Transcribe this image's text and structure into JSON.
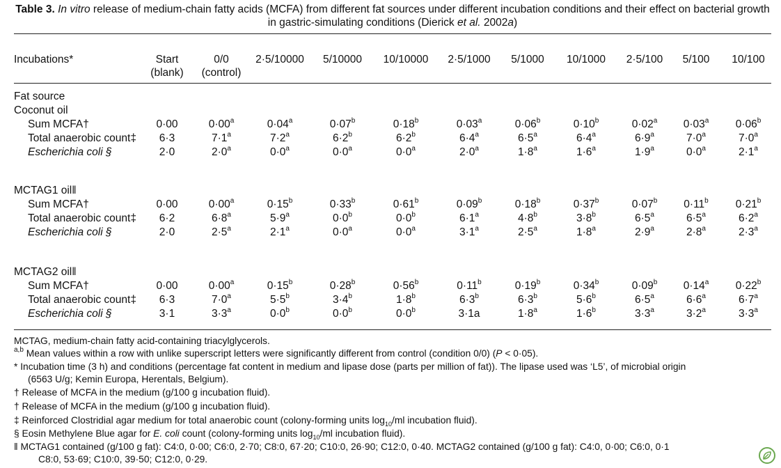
{
  "caption": {
    "label": "Table 3.",
    "italic_lead": "In vitro",
    "text_1": " release of medium-chain fatty acids (MCFA) from different fat sources under different incubation conditions and their effect on bacterial growth in gastric-simulating  conditions (Dierick ",
    "italic_etal": "et al.",
    "text_2": " 2002",
    "italic_suffix": "a",
    "text_3": ")"
  },
  "header": {
    "first_col": "Incubations*",
    "columns": [
      {
        "line1": "Start",
        "line2": "(blank)"
      },
      {
        "line1": "0/0",
        "line2": "(control)"
      },
      {
        "line1": "2·5/10000",
        "line2": ""
      },
      {
        "line1": "5/10000",
        "line2": ""
      },
      {
        "line1": "10/10000",
        "line2": ""
      },
      {
        "line1": "2·5/1000",
        "line2": ""
      },
      {
        "line1": "5/1000",
        "line2": ""
      },
      {
        "line1": "10/1000",
        "line2": ""
      },
      {
        "line1": "2·5/100",
        "line2": ""
      },
      {
        "line1": "5/100",
        "line2": ""
      },
      {
        "line1": "10/100",
        "line2": ""
      }
    ]
  },
  "body": {
    "fat_source_label": "Fat source",
    "groups": [
      {
        "name": "Coconut oil",
        "rows": [
          {
            "label": "Sum MCFA†",
            "italic": false,
            "cells": [
              {
                "v": "0·00",
                "s": ""
              },
              {
                "v": "0·00",
                "s": "a"
              },
              {
                "v": "0·04",
                "s": "a"
              },
              {
                "v": "0·07",
                "s": "b"
              },
              {
                "v": "0·18",
                "s": "b"
              },
              {
                "v": "0·03",
                "s": "a"
              },
              {
                "v": "0·06",
                "s": "b"
              },
              {
                "v": "0·10",
                "s": "b"
              },
              {
                "v": "0·02",
                "s": "a"
              },
              {
                "v": "0·03",
                "s": "a"
              },
              {
                "v": "0·06",
                "s": "b"
              }
            ]
          },
          {
            "label": "Total anaerobic count‡",
            "italic": false,
            "cells": [
              {
                "v": "6·3",
                "s": ""
              },
              {
                "v": "7·1",
                "s": "a"
              },
              {
                "v": "7·2",
                "s": "a"
              },
              {
                "v": "6·2",
                "s": "b"
              },
              {
                "v": "6·2",
                "s": "b"
              },
              {
                "v": "6·4",
                "s": "a"
              },
              {
                "v": "6·5",
                "s": "a"
              },
              {
                "v": "6·4",
                "s": "a"
              },
              {
                "v": "6·9",
                "s": "a"
              },
              {
                "v": "7·0",
                "s": "a"
              },
              {
                "v": "7·0",
                "s": "a"
              }
            ]
          },
          {
            "label": "Escherichia coli §",
            "italic": true,
            "cells": [
              {
                "v": "2·0",
                "s": ""
              },
              {
                "v": "2·0",
                "s": "a"
              },
              {
                "v": "0·0",
                "s": "a"
              },
              {
                "v": "0·0",
                "s": "a"
              },
              {
                "v": "0·0",
                "s": "a"
              },
              {
                "v": "2·0",
                "s": "a"
              },
              {
                "v": "1·8",
                "s": "a"
              },
              {
                "v": "1·6",
                "s": "a"
              },
              {
                "v": "1·9",
                "s": "a"
              },
              {
                "v": "0·0",
                "s": "a"
              },
              {
                "v": "2·1",
                "s": "a"
              }
            ]
          }
        ]
      },
      {
        "name": "MCTAG1 oil‖",
        "rows": [
          {
            "label": "Sum MCFA†",
            "italic": false,
            "cells": [
              {
                "v": "0·00",
                "s": ""
              },
              {
                "v": "0·00",
                "s": "a"
              },
              {
                "v": "0·15",
                "s": "b"
              },
              {
                "v": "0·33",
                "s": "b"
              },
              {
                "v": "0·61",
                "s": "b"
              },
              {
                "v": "0·09",
                "s": "b"
              },
              {
                "v": "0·18",
                "s": "b"
              },
              {
                "v": "0·37",
                "s": "b"
              },
              {
                "v": "0·07",
                "s": "b"
              },
              {
                "v": "0·11",
                "s": "b"
              },
              {
                "v": "0·21",
                "s": "b"
              }
            ]
          },
          {
            "label": "Total anaerobic count‡",
            "italic": false,
            "cells": [
              {
                "v": "6·2",
                "s": ""
              },
              {
                "v": "6·8",
                "s": "a"
              },
              {
                "v": "5·9",
                "s": "a"
              },
              {
                "v": "0·0",
                "s": "b"
              },
              {
                "v": "0·0",
                "s": "b"
              },
              {
                "v": "6·1",
                "s": "a"
              },
              {
                "v": "4·8",
                "s": "b"
              },
              {
                "v": "3·8",
                "s": "b"
              },
              {
                "v": "6·5",
                "s": "a"
              },
              {
                "v": "6·5",
                "s": "a"
              },
              {
                "v": "6·2",
                "s": "a"
              }
            ]
          },
          {
            "label": "Escherichia coli §",
            "italic": true,
            "cells": [
              {
                "v": "2·0",
                "s": ""
              },
              {
                "v": "2·5",
                "s": "a"
              },
              {
                "v": "2·1",
                "s": "a"
              },
              {
                "v": "0·0",
                "s": "a"
              },
              {
                "v": "0·0",
                "s": "a"
              },
              {
                "v": "3·1",
                "s": "a"
              },
              {
                "v": "2·5",
                "s": "a"
              },
              {
                "v": "1·8",
                "s": "a"
              },
              {
                "v": "2·9",
                "s": "a"
              },
              {
                "v": "2·8",
                "s": "a"
              },
              {
                "v": "2·3",
                "s": "a"
              }
            ]
          }
        ]
      },
      {
        "name": "MCTAG2 oil‖",
        "rows": [
          {
            "label": "Sum MCFA†",
            "italic": false,
            "cells": [
              {
                "v": "0·00",
                "s": ""
              },
              {
                "v": "0·00",
                "s": "a"
              },
              {
                "v": "0·15",
                "s": "b"
              },
              {
                "v": "0·28",
                "s": "b"
              },
              {
                "v": "0·56",
                "s": "b"
              },
              {
                "v": "0·11",
                "s": "b"
              },
              {
                "v": "0·19",
                "s": "b"
              },
              {
                "v": "0·34",
                "s": "b"
              },
              {
                "v": "0·09",
                "s": "b"
              },
              {
                "v": "0·14",
                "s": "a"
              },
              {
                "v": "0·22",
                "s": "b"
              }
            ]
          },
          {
            "label": "Total anaerobic count‡",
            "italic": false,
            "cells": [
              {
                "v": "6·3",
                "s": ""
              },
              {
                "v": "7·0",
                "s": "a"
              },
              {
                "v": "5·5",
                "s": "b"
              },
              {
                "v": "3·4",
                "s": "b"
              },
              {
                "v": "1·8",
                "s": "b"
              },
              {
                "v": "6·3",
                "s": "b"
              },
              {
                "v": "6·3",
                "s": "b"
              },
              {
                "v": "5·6",
                "s": "b"
              },
              {
                "v": "6·5",
                "s": "a"
              },
              {
                "v": "6·6",
                "s": "a"
              },
              {
                "v": "6·7",
                "s": "a"
              }
            ]
          },
          {
            "label": "Escherichia coli §",
            "italic": true,
            "cells": [
              {
                "v": "3·1",
                "s": ""
              },
              {
                "v": "3·3",
                "s": "a"
              },
              {
                "v": "0·0",
                "s": "b"
              },
              {
                "v": "0·0",
                "s": "b"
              },
              {
                "v": "0·0",
                "s": "b"
              },
              {
                "v": "3·1a",
                "s": ""
              },
              {
                "v": "1·8",
                "s": "a"
              },
              {
                "v": "1·6",
                "s": "b"
              },
              {
                "v": "3·3",
                "s": "a"
              },
              {
                "v": "3·2",
                "s": "a"
              },
              {
                "v": "3·3",
                "s": "a"
              }
            ]
          }
        ]
      }
    ]
  },
  "footnotes": {
    "abbrev": "MCTAG, medium-chain fatty acid-containing triacylglycerols.",
    "ab_sup": "a,b",
    "ab_text": " Mean values within a row with unlike superscript letters were significantly different from control (condition 0/0) (",
    "ab_p": "P",
    "ab_tail": " < 0·05).",
    "star_1": "* Incubation time (3 h) and conditions (percentage fat content in medium and lipase dose (parts per million of fat)). The lipase used was ‘L5’, of microbial origin",
    "star_2": "(6563 U/g; Kemin Europa, Herentals, Belgium).",
    "dagger_1": "† Release of MCFA in the medium (g/100 g incubation fluid).",
    "dagger_2": "† Release of MCFA in the medium (g/100 g incubation fluid).",
    "ddagger_pre": "‡ Reinforced Clostridial agar medium for total anaerobic count (colony-forming units log",
    "ddagger_sub": "10",
    "ddagger_post": "/ml incubation fluid).",
    "section_pre": "§ Eosin Methylene Blue agar for ",
    "section_italic": "E. coli",
    "section_mid": " count (colony-forming units log",
    "section_sub": "10",
    "section_post": "/ml incubation fluid).",
    "pipe_1": "‖ MCTAG1 contained (g/100 g fat): C4:0, 0·00; C6:0, 2·70; C8:0, 67·20; C10:0, 26·90; C12:0, 0·40. MCTAG2 contained (g/100 g fat): C4:0, 0·00; C6:0, 0·1",
    "pipe_2": "C8:0, 53·69; C10:0, 39·50; C12:0, 0·29."
  },
  "badge_icon": "leaf-icon",
  "colors": {
    "text": "#111111",
    "rule": "#222222",
    "badge": "#6aa84f"
  }
}
